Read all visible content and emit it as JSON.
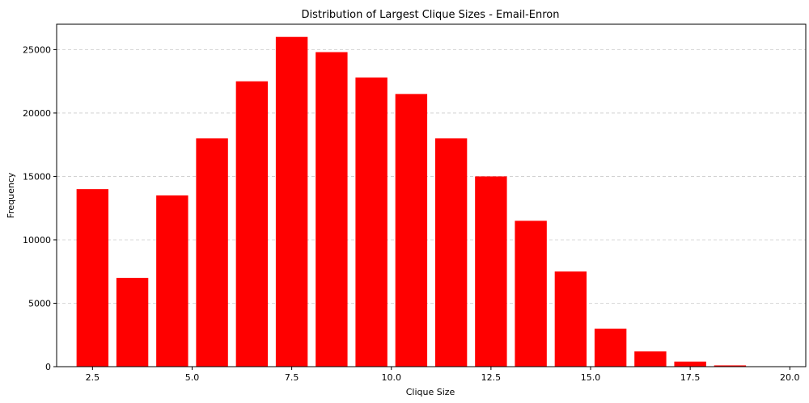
{
  "chart_data": {
    "type": "bar",
    "title": "Distribution of Largest Clique Sizes - Email-Enron",
    "xlabel": "Clique Size",
    "ylabel": "Frequency",
    "xlim": [
      1.6,
      20.4
    ],
    "ylim": [
      0,
      27000
    ],
    "bar_width": 0.8,
    "color": "#ff0000",
    "grid": {
      "y": true,
      "x": false,
      "style": "dashed",
      "color": "#cccccc"
    },
    "x": [
      2.5,
      3.5,
      4.5,
      5.5,
      6.5,
      7.5,
      8.5,
      9.5,
      10.5,
      11.5,
      12.5,
      13.5,
      14.5,
      15.5,
      16.5,
      17.5,
      18.5,
      19.5
    ],
    "values": [
      14000,
      7000,
      13500,
      18000,
      22500,
      26000,
      24800,
      22800,
      21500,
      18000,
      15000,
      11500,
      7500,
      3000,
      1200,
      400,
      100,
      30
    ],
    "x_ticks": [
      2.5,
      5.0,
      7.5,
      10.0,
      12.5,
      15.0,
      17.5,
      20.0
    ],
    "x_tick_labels": [
      "2.5",
      "5.0",
      "7.5",
      "10.0",
      "12.5",
      "15.0",
      "17.5",
      "20.0"
    ],
    "y_ticks": [
      0,
      5000,
      10000,
      15000,
      20000,
      25000
    ],
    "y_tick_labels": [
      "0",
      "5000",
      "10000",
      "15000",
      "20000",
      "25000"
    ]
  }
}
